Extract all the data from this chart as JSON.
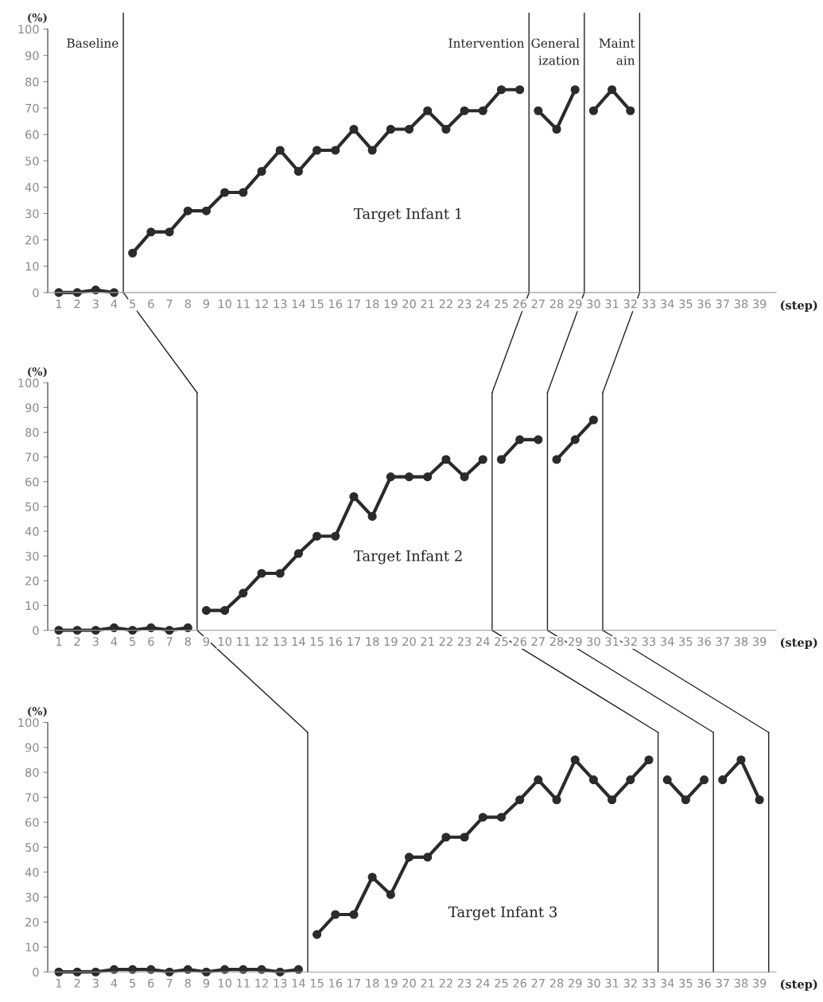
{
  "chart_data": [
    {
      "type": "line",
      "ylabel": "(%)",
      "xlabel": "(step)",
      "annotations": [
        "Target Infant 1"
      ],
      "xlim": [
        0.4,
        39.9
      ],
      "xticks": [
        1,
        2,
        3,
        4,
        5,
        6,
        7,
        8,
        9,
        10,
        11,
        12,
        13,
        14,
        15,
        16,
        17,
        18,
        19,
        20,
        21,
        22,
        23,
        24,
        25,
        26,
        27,
        28,
        29,
        30,
        31,
        32,
        33,
        34,
        35,
        36,
        37,
        38,
        39
      ],
      "ylim": [
        0,
        100
      ],
      "yticks": [
        0,
        10,
        20,
        30,
        40,
        50,
        60,
        70,
        80,
        90,
        100
      ],
      "marker": "circle",
      "line_style": "solid",
      "grid": false,
      "legend": false,
      "ref_lines": [
        {
          "axis": "x",
          "value": 4.5,
          "label": "Baseline"
        },
        {
          "axis": "x",
          "value": 26.5,
          "label": "Intervention"
        },
        {
          "axis": "x",
          "value": 29.5,
          "label": "General\nization"
        },
        {
          "axis": "x",
          "value": 32.5,
          "label": "Maint\nain"
        }
      ],
      "series": [
        {
          "color": "#2b2b2b",
          "x": [
            1,
            2,
            3,
            4
          ],
          "values": [
            0,
            0,
            1,
            0
          ]
        },
        {
          "color": "#2b2b2b",
          "x": [
            5,
            6,
            7,
            8,
            9,
            10,
            11,
            12,
            13,
            14,
            15,
            16,
            17,
            18,
            19,
            20,
            21,
            22,
            23,
            24,
            25,
            26
          ],
          "values": [
            15,
            23,
            23,
            31,
            31,
            38,
            38,
            46,
            54,
            46,
            54,
            54,
            62,
            54,
            62,
            62,
            69,
            62,
            69,
            69,
            77,
            77
          ]
        },
        {
          "color": "#2b2b2b",
          "x": [
            27,
            28,
            29
          ],
          "values": [
            69,
            62,
            77
          ]
        },
        {
          "color": "#2b2b2b",
          "x": [
            30,
            31,
            32
          ],
          "values": [
            69,
            77,
            69
          ]
        }
      ]
    },
    {
      "type": "line",
      "ylabel": "(%)",
      "xlabel": "(step)",
      "annotations": [
        "Target Infant 2"
      ],
      "xlim": [
        0.4,
        39.9
      ],
      "xticks": [
        1,
        2,
        3,
        4,
        5,
        6,
        7,
        8,
        9,
        10,
        11,
        12,
        13,
        14,
        15,
        16,
        17,
        18,
        19,
        20,
        21,
        22,
        23,
        24,
        25,
        26,
        27,
        28,
        29,
        30,
        31,
        32,
        33,
        34,
        35,
        36,
        37,
        38,
        39
      ],
      "ylim": [
        0,
        100
      ],
      "yticks": [
        0,
        10,
        20,
        30,
        40,
        50,
        60,
        70,
        80,
        90,
        100
      ],
      "marker": "circle",
      "line_style": "solid",
      "grid": false,
      "legend": false,
      "ref_lines": [
        {
          "axis": "x",
          "value": 8.5
        },
        {
          "axis": "x",
          "value": 24.5
        },
        {
          "axis": "x",
          "value": 27.5
        },
        {
          "axis": "x",
          "value": 30.5
        }
      ],
      "series": [
        {
          "color": "#2b2b2b",
          "x": [
            1,
            2,
            3,
            4,
            5,
            6,
            7,
            8
          ],
          "values": [
            0,
            0,
            0,
            1,
            0,
            1,
            0,
            1
          ]
        },
        {
          "color": "#2b2b2b",
          "x": [
            9,
            10,
            11,
            12,
            13,
            14,
            15,
            16,
            17,
            18,
            19,
            20,
            21,
            22,
            23,
            24
          ],
          "values": [
            8,
            8,
            15,
            23,
            23,
            31,
            38,
            38,
            54,
            46,
            62,
            62,
            62,
            69,
            62,
            69
          ]
        },
        {
          "color": "#2b2b2b",
          "x": [
            25,
            26,
            27
          ],
          "values": [
            69,
            77,
            77
          ]
        },
        {
          "color": "#2b2b2b",
          "x": [
            28,
            29,
            30
          ],
          "values": [
            69,
            77,
            85
          ]
        }
      ]
    },
    {
      "type": "line",
      "ylabel": "(%)",
      "xlabel": "(step)",
      "annotations": [
        "Target Infant 3"
      ],
      "xlim": [
        0.4,
        39.9
      ],
      "xticks": [
        1,
        2,
        3,
        4,
        5,
        6,
        7,
        8,
        9,
        10,
        11,
        12,
        13,
        14,
        15,
        16,
        17,
        18,
        19,
        20,
        21,
        22,
        23,
        24,
        25,
        26,
        27,
        28,
        29,
        30,
        31,
        32,
        33,
        34,
        35,
        36,
        37,
        38,
        39
      ],
      "ylim": [
        0,
        100
      ],
      "yticks": [
        0,
        10,
        20,
        30,
        40,
        50,
        60,
        70,
        80,
        90,
        100
      ],
      "marker": "circle",
      "line_style": "solid",
      "grid": false,
      "legend": false,
      "ref_lines": [
        {
          "axis": "x",
          "value": 14.5
        },
        {
          "axis": "x",
          "value": 33.5
        },
        {
          "axis": "x",
          "value": 36.5
        },
        {
          "axis": "x",
          "value": 39.5
        }
      ],
      "series": [
        {
          "color": "#2b2b2b",
          "x": [
            1,
            2,
            3,
            4,
            5,
            6,
            7,
            8,
            9,
            10,
            11,
            12,
            13,
            14
          ],
          "values": [
            0,
            0,
            0,
            1,
            1,
            1,
            0,
            1,
            0,
            1,
            1,
            1,
            0,
            1
          ]
        },
        {
          "color": "#2b2b2b",
          "x": [
            15,
            16,
            17,
            18,
            19,
            20,
            21,
            22,
            23,
            24,
            25,
            26,
            27,
            28,
            29,
            30,
            31,
            32,
            33
          ],
          "values": [
            15,
            23,
            23,
            38,
            31,
            46,
            46,
            54,
            54,
            62,
            62,
            69,
            77,
            69,
            85,
            77,
            69,
            77,
            85
          ]
        },
        {
          "color": "#2b2b2b",
          "x": [
            34,
            35,
            36
          ],
          "values": [
            77,
            69,
            77
          ]
        },
        {
          "color": "#2b2b2b",
          "x": [
            37,
            38,
            39
          ],
          "values": [
            77,
            85,
            69
          ]
        }
      ]
    }
  ]
}
